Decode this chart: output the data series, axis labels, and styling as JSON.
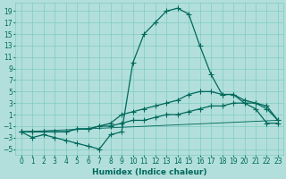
{
  "background_color": "#b2dfdb",
  "grid_color": "#80cbc4",
  "line_color": "#00695c",
  "marker_color": "#00695c",
  "xlabel": "Humidex (Indice chaleur)",
  "x_ticks": [
    0,
    1,
    2,
    3,
    4,
    5,
    6,
    7,
    8,
    9,
    10,
    11,
    12,
    13,
    14,
    15,
    16,
    17,
    18,
    19,
    20,
    21,
    22,
    23
  ],
  "y_ticks": [
    -5,
    -3,
    -1,
    1,
    3,
    5,
    7,
    9,
    11,
    13,
    15,
    17,
    19
  ],
  "xlim": [
    -0.5,
    23.5
  ],
  "ylim": [
    -6,
    20.5
  ],
  "series1_x": [
    0,
    1,
    2,
    3,
    4,
    5,
    6,
    7,
    8,
    9,
    10,
    11,
    12,
    13,
    14,
    15,
    16,
    17,
    18,
    19,
    20,
    21,
    22,
    23
  ],
  "series1_y": [
    -2,
    -3,
    -2.5,
    -3,
    -3.5,
    -4,
    -4.5,
    -5,
    -2.5,
    -2,
    10,
    15,
    17,
    19,
    19.5,
    18.5,
    13,
    8,
    4.5,
    4.5,
    3,
    2,
    -0.5,
    -0.5
  ],
  "series2_x": [
    0,
    1,
    2,
    3,
    4,
    5,
    6,
    7,
    8,
    9,
    10,
    11,
    12,
    13,
    14,
    15,
    16,
    17,
    18,
    19,
    20,
    21,
    22,
    23
  ],
  "series2_y": [
    -2,
    -2,
    -2,
    -2,
    -2,
    -1.5,
    -1.5,
    -1,
    -1,
    -0.5,
    0,
    0,
    0.5,
    1,
    1,
    1.5,
    2,
    2.5,
    2.5,
    3,
    3,
    3,
    2,
    0
  ],
  "series3_x": [
    0,
    1,
    2,
    3,
    4,
    5,
    6,
    7,
    8,
    9,
    10,
    11,
    12,
    13,
    14,
    15,
    16,
    17,
    18,
    19,
    20,
    21,
    22,
    23
  ],
  "series3_y": [
    -2,
    -2,
    -2,
    -2,
    -2,
    -1.5,
    -1.5,
    -1,
    -0.5,
    1,
    1.5,
    2,
    2.5,
    3,
    3.5,
    4.5,
    5,
    5,
    4.5,
    4.5,
    3.5,
    3,
    2.5,
    0
  ],
  "series4_x": [
    0,
    23
  ],
  "series4_y": [
    -2,
    0
  ],
  "tick_fontsize": 5.5,
  "xlabel_fontsize": 6.5,
  "linewidth": 0.9,
  "markersize": 2.0
}
